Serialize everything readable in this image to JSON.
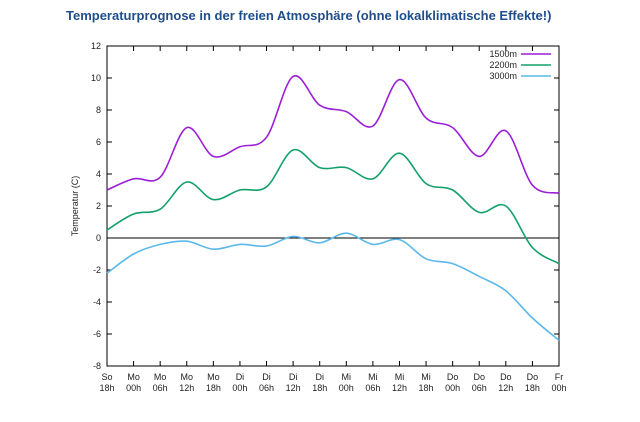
{
  "page": {
    "title": "Temperaturprognose in der freien Atmosphäre (ohne lokalklimatische Effekte!)"
  },
  "chart_data": {
    "type": "line",
    "title": "Temperaturprognose in der freien Atmosphäre (ohne lokalklimatische Effekte!)",
    "xlabel": "",
    "ylabel": "Temperatur (C)",
    "ylim": [
      -8,
      12
    ],
    "yticks": [
      12,
      10,
      8,
      6,
      4,
      2,
      0,
      -2,
      -4,
      -6,
      -8
    ],
    "categories": [
      [
        "So",
        "18h"
      ],
      [
        "Mo",
        "00h"
      ],
      [
        "Mo",
        "06h"
      ],
      [
        "Mo",
        "12h"
      ],
      [
        "Mo",
        "18h"
      ],
      [
        "Di",
        "00h"
      ],
      [
        "Di",
        "06h"
      ],
      [
        "Di",
        "12h"
      ],
      [
        "Di",
        "18h"
      ],
      [
        "Mi",
        "00h"
      ],
      [
        "Mi",
        "06h"
      ],
      [
        "Mi",
        "12h"
      ],
      [
        "Mi",
        "18h"
      ],
      [
        "Do",
        "00h"
      ],
      [
        "Do",
        "06h"
      ],
      [
        "Do",
        "12h"
      ],
      [
        "Do",
        "18h"
      ],
      [
        "Fr",
        "00h"
      ]
    ],
    "zero_line": 0,
    "legend_position": "top-right",
    "series": [
      {
        "name": "1500m",
        "color": "#9b1fd8",
        "values": [
          3.0,
          3.7,
          3.8,
          6.9,
          5.1,
          5.7,
          6.3,
          10.1,
          8.3,
          7.9,
          7.0,
          9.9,
          7.5,
          6.9,
          5.1,
          6.7,
          3.3,
          2.8
        ]
      },
      {
        "name": "2200m",
        "color": "#13a06a",
        "values": [
          0.5,
          1.5,
          1.8,
          3.5,
          2.4,
          3.0,
          3.2,
          5.5,
          4.4,
          4.4,
          3.7,
          5.3,
          3.4,
          3.0,
          1.6,
          2.0,
          -0.6,
          -1.6
        ]
      },
      {
        "name": "3000m",
        "color": "#5bb8ea",
        "values": [
          -2.2,
          -1.0,
          -0.4,
          -0.2,
          -0.7,
          -0.4,
          -0.5,
          0.1,
          -0.3,
          0.3,
          -0.4,
          -0.1,
          -1.3,
          -1.6,
          -2.4,
          -3.3,
          -5.0,
          -6.4
        ]
      }
    ]
  }
}
